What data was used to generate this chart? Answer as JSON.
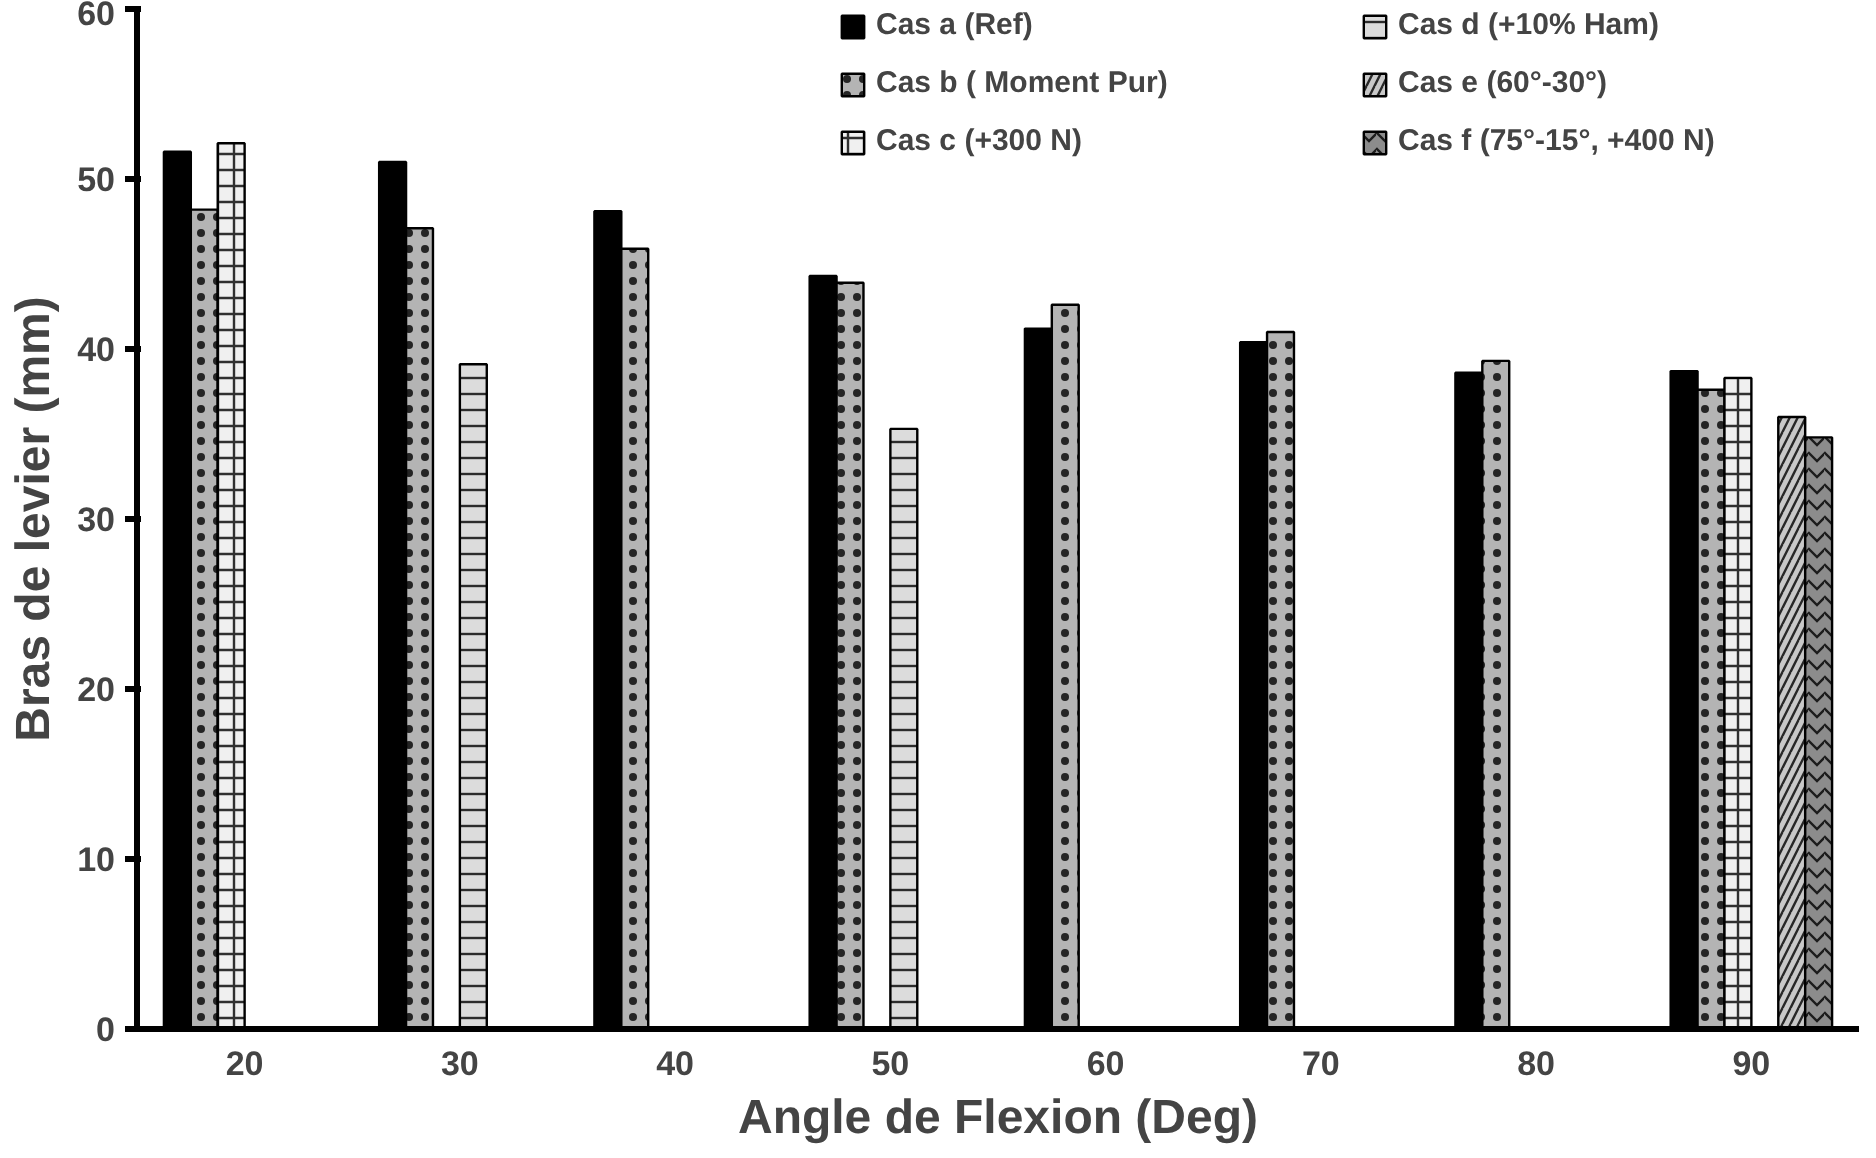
{
  "chart_data": {
    "type": "bar",
    "xlabel": "Angle de Flexion (Deg)",
    "ylabel": "Bras de levier (mm)",
    "categories": [
      "20",
      "30",
      "40",
      "50",
      "60",
      "70",
      "80",
      "90"
    ],
    "series": [
      {
        "name": "Cas a (Ref)",
        "color": "#000000",
        "values": [
          51.6,
          51.0,
          48.1,
          44.3,
          41.2,
          40.4,
          38.6,
          38.7
        ]
      },
      {
        "name": "Cas b ( Moment Pur)",
        "color": "#b4b4b4",
        "values": [
          48.2,
          47.1,
          45.9,
          43.9,
          42.6,
          41.0,
          39.3,
          37.6
        ]
      },
      {
        "name": "Cas c (+300 N)",
        "color": "#f0f0f0",
        "values": [
          52.1,
          null,
          null,
          null,
          null,
          null,
          null,
          38.3
        ]
      },
      {
        "name": "Cas d (+10% Ham)",
        "color": "#dcdcdc",
        "values": [
          null,
          39.1,
          null,
          35.3,
          null,
          null,
          null,
          null
        ]
      },
      {
        "name": "Cas e (60°-30°)",
        "color": "#c8c8c8",
        "values": [
          null,
          null,
          null,
          null,
          null,
          null,
          null,
          36.0
        ]
      },
      {
        "name": "Cas f (75°-15°, +400 N)",
        "color": "#8c8c8c",
        "values": [
          null,
          null,
          null,
          null,
          null,
          null,
          null,
          34.8
        ]
      }
    ],
    "ylim": [
      0,
      60
    ],
    "yticks": [
      0,
      10,
      20,
      30,
      40,
      50,
      60
    ],
    "grid": false,
    "legend": "top"
  }
}
